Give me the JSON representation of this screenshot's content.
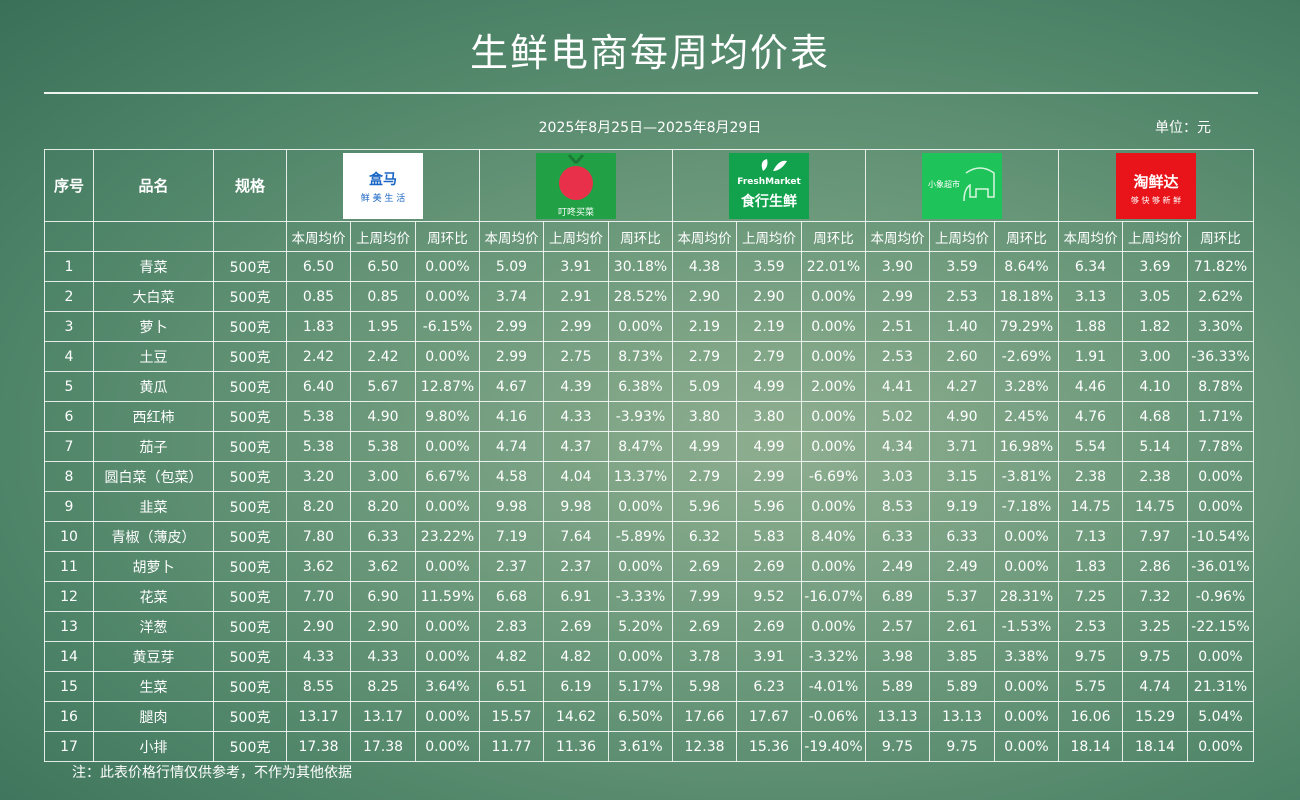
{
  "title": "生鲜电商每周均价表",
  "date_range": "2025年8月25日—2025年8月29日",
  "unit": "单位：元",
  "headers": {
    "index": "序号",
    "name": "品名",
    "spec": "规格"
  },
  "sub_headers": [
    "本周均价",
    "上周均价",
    "周环比"
  ],
  "platforms": [
    {
      "logo_text": "盒马",
      "logo_sub": "鲜 美 生 活",
      "color": "#ffffff"
    },
    {
      "logo_text": "",
      "logo_sub": "叮咚买菜",
      "color": "#22a046"
    },
    {
      "logo_text": "FreshMarket",
      "logo_sub": "食行生鲜",
      "color": "#12a14c"
    },
    {
      "logo_text": "小象超市",
      "logo_sub": "",
      "color": "#1ec45a"
    },
    {
      "logo_text": "淘鲜达",
      "logo_sub": "够 快 够 新 鲜",
      "color": "#e8141a"
    }
  ],
  "rows": [
    {
      "idx": "1",
      "name": "青菜",
      "spec": "500克",
      "vals": [
        "6.50",
        "6.50",
        "0.00%",
        "5.09",
        "3.91",
        "30.18%",
        "4.38",
        "3.59",
        "22.01%",
        "3.90",
        "3.59",
        "8.64%",
        "6.34",
        "3.69",
        "71.82%"
      ]
    },
    {
      "idx": "2",
      "name": "大白菜",
      "spec": "500克",
      "vals": [
        "0.85",
        "0.85",
        "0.00%",
        "3.74",
        "2.91",
        "28.52%",
        "2.90",
        "2.90",
        "0.00%",
        "2.99",
        "2.53",
        "18.18%",
        "3.13",
        "3.05",
        "2.62%"
      ]
    },
    {
      "idx": "3",
      "name": "萝卜",
      "spec": "500克",
      "vals": [
        "1.83",
        "1.95",
        "-6.15%",
        "2.99",
        "2.99",
        "0.00%",
        "2.19",
        "2.19",
        "0.00%",
        "2.51",
        "1.40",
        "79.29%",
        "1.88",
        "1.82",
        "3.30%"
      ]
    },
    {
      "idx": "4",
      "name": "土豆",
      "spec": "500克",
      "vals": [
        "2.42",
        "2.42",
        "0.00%",
        "2.99",
        "2.75",
        "8.73%",
        "2.79",
        "2.79",
        "0.00%",
        "2.53",
        "2.60",
        "-2.69%",
        "1.91",
        "3.00",
        "-36.33%"
      ]
    },
    {
      "idx": "5",
      "name": "黄瓜",
      "spec": "500克",
      "vals": [
        "6.40",
        "5.67",
        "12.87%",
        "4.67",
        "4.39",
        "6.38%",
        "5.09",
        "4.99",
        "2.00%",
        "4.41",
        "4.27",
        "3.28%",
        "4.46",
        "4.10",
        "8.78%"
      ]
    },
    {
      "idx": "6",
      "name": "西红柿",
      "spec": "500克",
      "vals": [
        "5.38",
        "4.90",
        "9.80%",
        "4.16",
        "4.33",
        "-3.93%",
        "3.80",
        "3.80",
        "0.00%",
        "5.02",
        "4.90",
        "2.45%",
        "4.76",
        "4.68",
        "1.71%"
      ]
    },
    {
      "idx": "7",
      "name": "茄子",
      "spec": "500克",
      "vals": [
        "5.38",
        "5.38",
        "0.00%",
        "4.74",
        "4.37",
        "8.47%",
        "4.99",
        "4.99",
        "0.00%",
        "4.34",
        "3.71",
        "16.98%",
        "5.54",
        "5.14",
        "7.78%"
      ]
    },
    {
      "idx": "8",
      "name": "圆白菜（包菜）",
      "spec": "500克",
      "vals": [
        "3.20",
        "3.00",
        "6.67%",
        "4.58",
        "4.04",
        "13.37%",
        "2.79",
        "2.99",
        "-6.69%",
        "3.03",
        "3.15",
        "-3.81%",
        "2.38",
        "2.38",
        "0.00%"
      ]
    },
    {
      "idx": "9",
      "name": "韭菜",
      "spec": "500克",
      "vals": [
        "8.20",
        "8.20",
        "0.00%",
        "9.98",
        "9.98",
        "0.00%",
        "5.96",
        "5.96",
        "0.00%",
        "8.53",
        "9.19",
        "-7.18%",
        "14.75",
        "14.75",
        "0.00%"
      ]
    },
    {
      "idx": "10",
      "name": "青椒（薄皮）",
      "spec": "500克",
      "vals": [
        "7.80",
        "6.33",
        "23.22%",
        "7.19",
        "7.64",
        "-5.89%",
        "6.32",
        "5.83",
        "8.40%",
        "6.33",
        "6.33",
        "0.00%",
        "7.13",
        "7.97",
        "-10.54%"
      ]
    },
    {
      "idx": "11",
      "name": "胡萝卜",
      "spec": "500克",
      "vals": [
        "3.62",
        "3.62",
        "0.00%",
        "2.37",
        "2.37",
        "0.00%",
        "2.69",
        "2.69",
        "0.00%",
        "2.49",
        "2.49",
        "0.00%",
        "1.83",
        "2.86",
        "-36.01%"
      ]
    },
    {
      "idx": "12",
      "name": "花菜",
      "spec": "500克",
      "vals": [
        "7.70",
        "6.90",
        "11.59%",
        "6.68",
        "6.91",
        "-3.33%",
        "7.99",
        "9.52",
        "-16.07%",
        "6.89",
        "5.37",
        "28.31%",
        "7.25",
        "7.32",
        "-0.96%"
      ]
    },
    {
      "idx": "13",
      "name": "洋葱",
      "spec": "500克",
      "vals": [
        "2.90",
        "2.90",
        "0.00%",
        "2.83",
        "2.69",
        "5.20%",
        "2.69",
        "2.69",
        "0.00%",
        "2.57",
        "2.61",
        "-1.53%",
        "2.53",
        "3.25",
        "-22.15%"
      ]
    },
    {
      "idx": "14",
      "name": "黄豆芽",
      "spec": "500克",
      "vals": [
        "4.33",
        "4.33",
        "0.00%",
        "4.82",
        "4.82",
        "0.00%",
        "3.78",
        "3.91",
        "-3.32%",
        "3.98",
        "3.85",
        "3.38%",
        "9.75",
        "9.75",
        "0.00%"
      ]
    },
    {
      "idx": "15",
      "name": "生菜",
      "spec": "500克",
      "vals": [
        "8.55",
        "8.25",
        "3.64%",
        "6.51",
        "6.19",
        "5.17%",
        "5.98",
        "6.23",
        "-4.01%",
        "5.89",
        "5.89",
        "0.00%",
        "5.75",
        "4.74",
        "21.31%"
      ]
    },
    {
      "idx": "16",
      "name": "腿肉",
      "spec": "500克",
      "vals": [
        "13.17",
        "13.17",
        "0.00%",
        "15.57",
        "14.62",
        "6.50%",
        "17.66",
        "17.67",
        "-0.06%",
        "13.13",
        "13.13",
        "0.00%",
        "16.06",
        "15.29",
        "5.04%"
      ]
    },
    {
      "idx": "17",
      "name": "小排",
      "spec": "500克",
      "vals": [
        "17.38",
        "17.38",
        "0.00%",
        "11.77",
        "11.36",
        "3.61%",
        "12.38",
        "15.36",
        "-19.40%",
        "9.75",
        "9.75",
        "0.00%",
        "18.14",
        "18.14",
        "0.00%"
      ]
    }
  ],
  "note": "注：此表价格行情仅供参考，不作为其他依据"
}
